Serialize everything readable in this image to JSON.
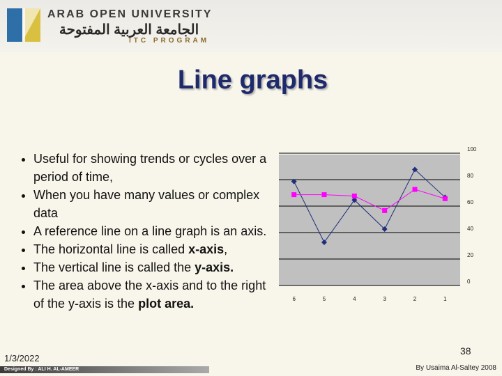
{
  "header": {
    "university": "ARAB OPEN UNIVERSITY",
    "university_arabic": "الجامعة العربية المفتوحة",
    "program": "ITC PROGRAM"
  },
  "title": "Line graphs",
  "bullets": [
    [
      {
        "text": "Useful for showing trends or cycles over a period of time,",
        "bold": false
      }
    ],
    [
      {
        "text": "When you have many values or complex data",
        "bold": false
      }
    ],
    [
      {
        "text": "A reference line on a line graph is an axis.",
        "bold": false
      }
    ],
    [
      {
        "text": "The horizontal line is called ",
        "bold": false
      },
      {
        "text": "x-axis",
        "bold": true
      },
      {
        "text": ",",
        "bold": false
      }
    ],
    [
      {
        "text": "The vertical line is called the ",
        "bold": false
      },
      {
        "text": "y-axis.",
        "bold": true
      }
    ],
    [
      {
        "text": "The area above the x-axis and to the right of the y-axis is the ",
        "bold": false
      },
      {
        "text": "plot area.",
        "bold": true
      }
    ]
  ],
  "chart_data": {
    "type": "line",
    "categories": [
      "6",
      "5",
      "4",
      "3",
      "2",
      "1"
    ],
    "series": [
      {
        "color": "#1f2f7a",
        "marker": "diamond",
        "values": [
          76,
          30,
          62,
          40,
          85,
          64
        ]
      },
      {
        "color": "#ff00ff",
        "marker": "square",
        "values": [
          66,
          66,
          65,
          54,
          70,
          63
        ]
      }
    ],
    "ylim": [
      0,
      100
    ],
    "yticks": [
      0,
      20,
      40,
      60,
      80,
      100
    ],
    "grid": true
  },
  "footer": {
    "date": "1/3/2022",
    "page": "38",
    "designer": "Designed By : ALI H. AL-AMEER",
    "author": "By Usaima Al-Saltey 2008"
  }
}
